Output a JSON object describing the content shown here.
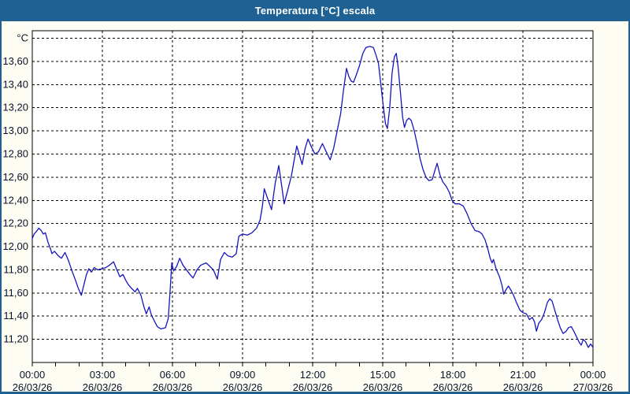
{
  "window": {
    "title": "Temperatura [°C] escala"
  },
  "colors": {
    "frame": "#1E6192",
    "title_text": "#FFFFFF",
    "content_bg": "#FDFDF4",
    "plot_bg": "#FFFFFF",
    "grid": "#000000",
    "axis_text": "#0A1228",
    "line": "#1515BE"
  },
  "chart_data": {
    "type": "line",
    "title": "Temperatura [°C] escala",
    "unit_label": "°C",
    "legend": "none",
    "grid": "dashed",
    "x_axis": {
      "range_hours": [
        0,
        24
      ],
      "ticks": [
        {
          "hour": 0,
          "time": "00:00",
          "date": "26/03/26"
        },
        {
          "hour": 3,
          "time": "03:00",
          "date": "26/03/26"
        },
        {
          "hour": 6,
          "time": "06:00",
          "date": "26/03/26"
        },
        {
          "hour": 9,
          "time": "09:00",
          "date": "26/03/26"
        },
        {
          "hour": 12,
          "time": "12:00",
          "date": "26/03/26"
        },
        {
          "hour": 15,
          "time": "15:00",
          "date": "26/03/26"
        },
        {
          "hour": 18,
          "time": "18:00",
          "date": "26/03/26"
        },
        {
          "hour": 21,
          "time": "21:00",
          "date": "26/03/26"
        },
        {
          "hour": 24,
          "time": "00:00",
          "date": "27/03/26"
        }
      ],
      "minor_tick_every_hours": 1
    },
    "y_axis": {
      "range": [
        11.0,
        13.865
      ],
      "gridline_values": [
        11.2,
        11.4,
        11.6,
        11.8,
        12.0,
        12.2,
        12.4,
        12.6,
        12.8,
        13.0,
        13.2,
        13.4,
        13.6,
        13.8
      ],
      "ticks": [
        {
          "value": 13.6,
          "label": "13,60"
        },
        {
          "value": 13.4,
          "label": "13,40"
        },
        {
          "value": 13.2,
          "label": "13,20"
        },
        {
          "value": 13.0,
          "label": "13,00"
        },
        {
          "value": 12.8,
          "label": "12,80"
        },
        {
          "value": 12.6,
          "label": "12,60"
        },
        {
          "value": 12.4,
          "label": "12,40"
        },
        {
          "value": 12.2,
          "label": "12,20"
        },
        {
          "value": 12.0,
          "label": "12,00"
        },
        {
          "value": 11.8,
          "label": "11,80"
        },
        {
          "value": 11.6,
          "label": "11,60"
        },
        {
          "value": 11.4,
          "label": "11,40"
        },
        {
          "value": 11.2,
          "label": "11,20"
        }
      ]
    },
    "series": [
      {
        "name": "Temperatura",
        "points": [
          [
            0.0,
            12.07
          ],
          [
            0.08,
            12.11
          ],
          [
            0.17,
            12.13
          ],
          [
            0.28,
            12.16
          ],
          [
            0.38,
            12.14
          ],
          [
            0.47,
            12.11
          ],
          [
            0.56,
            12.12
          ],
          [
            0.67,
            12.04
          ],
          [
            0.78,
            11.98
          ],
          [
            0.84,
            11.94
          ],
          [
            0.95,
            11.96
          ],
          [
            1.12,
            11.92
          ],
          [
            1.25,
            11.9
          ],
          [
            1.4,
            11.95
          ],
          [
            1.55,
            11.88
          ],
          [
            1.7,
            11.79
          ],
          [
            1.85,
            11.71
          ],
          [
            1.97,
            11.64
          ],
          [
            2.1,
            11.58
          ],
          [
            2.22,
            11.68
          ],
          [
            2.32,
            11.76
          ],
          [
            2.42,
            11.81
          ],
          [
            2.53,
            11.78
          ],
          [
            2.65,
            11.82
          ],
          [
            2.8,
            11.8
          ],
          [
            3.0,
            11.81
          ],
          [
            3.15,
            11.82
          ],
          [
            3.3,
            11.84
          ],
          [
            3.48,
            11.87
          ],
          [
            3.6,
            11.81
          ],
          [
            3.75,
            11.74
          ],
          [
            3.88,
            11.76
          ],
          [
            4.0,
            11.71
          ],
          [
            4.12,
            11.67
          ],
          [
            4.25,
            11.64
          ],
          [
            4.4,
            11.61
          ],
          [
            4.5,
            11.64
          ],
          [
            4.65,
            11.58
          ],
          [
            4.78,
            11.48
          ],
          [
            4.88,
            11.42
          ],
          [
            5.0,
            11.48
          ],
          [
            5.1,
            11.41
          ],
          [
            5.22,
            11.36
          ],
          [
            5.35,
            11.31
          ],
          [
            5.5,
            11.29
          ],
          [
            5.7,
            11.3
          ],
          [
            5.82,
            11.38
          ],
          [
            5.9,
            11.62
          ],
          [
            5.97,
            11.86
          ],
          [
            6.05,
            11.79
          ],
          [
            6.18,
            11.83
          ],
          [
            6.31,
            11.9
          ],
          [
            6.45,
            11.84
          ],
          [
            6.6,
            11.8
          ],
          [
            6.75,
            11.76
          ],
          [
            6.88,
            11.73
          ],
          [
            7.05,
            11.8
          ],
          [
            7.21,
            11.84
          ],
          [
            7.44,
            11.86
          ],
          [
            7.6,
            11.83
          ],
          [
            7.75,
            11.8
          ],
          [
            7.92,
            11.72
          ],
          [
            8.06,
            11.89
          ],
          [
            8.22,
            11.95
          ],
          [
            8.38,
            11.92
          ],
          [
            8.56,
            11.91
          ],
          [
            8.73,
            11.94
          ],
          [
            8.84,
            12.09
          ],
          [
            9.0,
            12.11
          ],
          [
            9.2,
            12.1
          ],
          [
            9.4,
            12.12
          ],
          [
            9.6,
            12.16
          ],
          [
            9.75,
            12.23
          ],
          [
            9.85,
            12.35
          ],
          [
            9.93,
            12.5
          ],
          [
            10.05,
            12.43
          ],
          [
            10.24,
            12.32
          ],
          [
            10.4,
            12.55
          ],
          [
            10.55,
            12.7
          ],
          [
            10.68,
            12.52
          ],
          [
            10.78,
            12.37
          ],
          [
            10.95,
            12.5
          ],
          [
            11.09,
            12.61
          ],
          [
            11.22,
            12.76
          ],
          [
            11.32,
            12.87
          ],
          [
            11.45,
            12.78
          ],
          [
            11.55,
            12.71
          ],
          [
            11.68,
            12.85
          ],
          [
            11.8,
            12.93
          ],
          [
            11.95,
            12.86
          ],
          [
            12.1,
            12.8
          ],
          [
            12.25,
            12.82
          ],
          [
            12.42,
            12.89
          ],
          [
            12.58,
            12.82
          ],
          [
            12.75,
            12.75
          ],
          [
            12.9,
            12.85
          ],
          [
            13.05,
            13.0
          ],
          [
            13.2,
            13.15
          ],
          [
            13.32,
            13.35
          ],
          [
            13.45,
            13.54
          ],
          [
            13.55,
            13.47
          ],
          [
            13.65,
            13.43
          ],
          [
            13.75,
            13.42
          ],
          [
            13.88,
            13.49
          ],
          [
            14.0,
            13.56
          ],
          [
            14.15,
            13.67
          ],
          [
            14.28,
            13.72
          ],
          [
            14.45,
            13.73
          ],
          [
            14.6,
            13.72
          ],
          [
            14.72,
            13.65
          ],
          [
            14.82,
            13.58
          ],
          [
            14.92,
            13.4
          ],
          [
            15.02,
            13.22
          ],
          [
            15.12,
            13.06
          ],
          [
            15.2,
            13.02
          ],
          [
            15.3,
            13.2
          ],
          [
            15.4,
            13.5
          ],
          [
            15.5,
            13.64
          ],
          [
            15.58,
            13.67
          ],
          [
            15.66,
            13.55
          ],
          [
            15.75,
            13.35
          ],
          [
            15.85,
            13.12
          ],
          [
            15.93,
            13.03
          ],
          [
            16.02,
            13.09
          ],
          [
            16.12,
            13.11
          ],
          [
            16.22,
            13.09
          ],
          [
            16.35,
            13.0
          ],
          [
            16.48,
            12.88
          ],
          [
            16.6,
            12.76
          ],
          [
            16.72,
            12.67
          ],
          [
            16.85,
            12.6
          ],
          [
            16.98,
            12.57
          ],
          [
            17.12,
            12.58
          ],
          [
            17.25,
            12.67
          ],
          [
            17.33,
            12.72
          ],
          [
            17.45,
            12.62
          ],
          [
            17.57,
            12.56
          ],
          [
            17.72,
            12.52
          ],
          [
            17.85,
            12.47
          ],
          [
            17.97,
            12.4
          ],
          [
            18.1,
            12.37
          ],
          [
            18.28,
            12.37
          ],
          [
            18.45,
            12.35
          ],
          [
            18.6,
            12.29
          ],
          [
            18.78,
            12.2
          ],
          [
            18.95,
            12.14
          ],
          [
            19.12,
            12.13
          ],
          [
            19.25,
            12.11
          ],
          [
            19.38,
            12.06
          ],
          [
            19.5,
            11.98
          ],
          [
            19.6,
            11.9
          ],
          [
            19.68,
            11.86
          ],
          [
            19.74,
            11.89
          ],
          [
            19.85,
            11.81
          ],
          [
            20.0,
            11.74
          ],
          [
            20.1,
            11.67
          ],
          [
            20.18,
            11.59
          ],
          [
            20.28,
            11.63
          ],
          [
            20.38,
            11.66
          ],
          [
            20.5,
            11.62
          ],
          [
            20.6,
            11.58
          ],
          [
            20.74,
            11.51
          ],
          [
            20.88,
            11.45
          ],
          [
            21.0,
            11.43
          ],
          [
            21.15,
            11.42
          ],
          [
            21.28,
            11.37
          ],
          [
            21.4,
            11.39
          ],
          [
            21.5,
            11.35
          ],
          [
            21.58,
            11.27
          ],
          [
            21.68,
            11.34
          ],
          [
            21.8,
            11.37
          ],
          [
            21.92,
            11.43
          ],
          [
            22.05,
            11.52
          ],
          [
            22.15,
            11.55
          ],
          [
            22.25,
            11.53
          ],
          [
            22.38,
            11.44
          ],
          [
            22.5,
            11.36
          ],
          [
            22.6,
            11.3
          ],
          [
            22.72,
            11.25
          ],
          [
            22.85,
            11.27
          ],
          [
            22.95,
            11.3
          ],
          [
            23.07,
            11.31
          ],
          [
            23.18,
            11.27
          ],
          [
            23.3,
            11.22
          ],
          [
            23.42,
            11.17
          ],
          [
            23.5,
            11.15
          ],
          [
            23.58,
            11.2
          ],
          [
            23.68,
            11.18
          ],
          [
            23.8,
            11.13
          ],
          [
            23.9,
            11.16
          ],
          [
            24.0,
            11.13
          ]
        ]
      }
    ]
  }
}
